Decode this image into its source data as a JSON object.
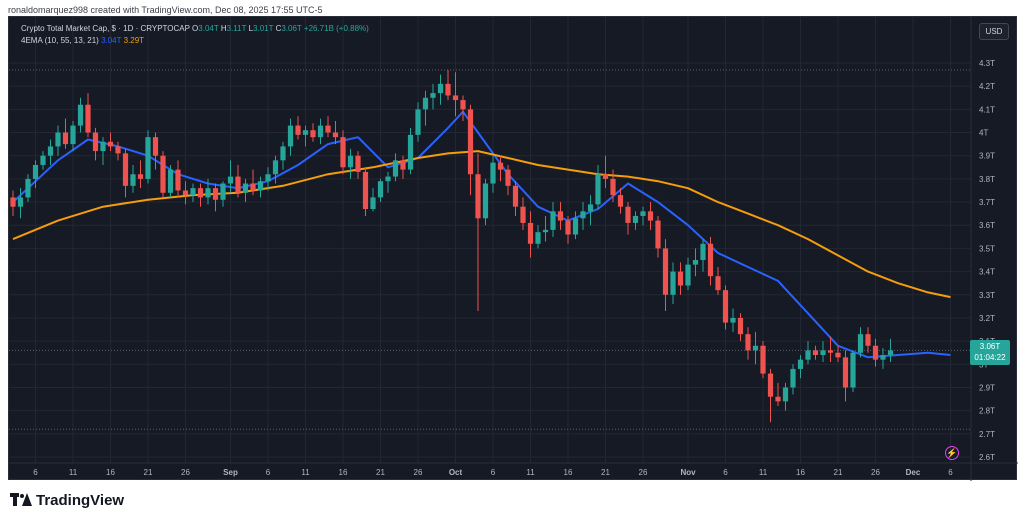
{
  "header": {
    "credit": "ronaldomarquez998 created with TradingView.com, Dec 08, 2025 17:55 UTC-5"
  },
  "legend": {
    "symbol": "Crypto Total Market Cap, $ · 1D · CRYPTOCAP",
    "o_label": "O",
    "o_value": "3.04T",
    "h_label": "H",
    "h_value": "3.11T",
    "l_label": "L",
    "l_value": "3.01T",
    "c_label": "C",
    "c_value": "3.06T",
    "change": "+26.71B (+0.88%)",
    "indicator": "4EMA (10, 55, 13, 21)",
    "ema_fast_value": "3.04T",
    "ema_slow_value": "3.29T"
  },
  "currency": "USD",
  "price_tag": {
    "price": "3.06T",
    "countdown": "01:04:22"
  },
  "footer": {
    "brand": "TradingView"
  },
  "colors": {
    "background": "#161a25",
    "up": "#26a69a",
    "down": "#ef5350",
    "ema_fast": "#2962ff",
    "ema_slow": "#f59d0b",
    "grid": "#232733",
    "axis_text": "#b2b5be"
  },
  "chart_data": {
    "type": "candlestick",
    "title": "Crypto Total Market Cap, $ · 1D · CRYPTOCAP",
    "ylim": [
      2.6,
      4.3
    ],
    "y_unit": "T",
    "y_ticks": [
      "4.3T",
      "4.2T",
      "4.1T",
      "4T",
      "3.9T",
      "3.8T",
      "3.7T",
      "3.6T",
      "3.5T",
      "3.4T",
      "3.3T",
      "3.2T",
      "3.1T",
      "3T",
      "2.9T",
      "2.8T",
      "2.7T",
      "2.6T"
    ],
    "y_tick_values": [
      4.3,
      4.2,
      4.1,
      4.0,
      3.9,
      3.8,
      3.7,
      3.6,
      3.5,
      3.4,
      3.3,
      3.2,
      3.1,
      3.0,
      2.9,
      2.8,
      2.7,
      2.6
    ],
    "x_tick_labels": [
      "6",
      "11",
      "16",
      "21",
      "26",
      "Sep",
      "6",
      "11",
      "16",
      "21",
      "26",
      "Oct",
      "6",
      "11",
      "16",
      "21",
      "26",
      "Nov",
      "6",
      "11",
      "16",
      "21",
      "26",
      "Dec",
      "6"
    ],
    "x_tick_index": [
      3,
      8,
      13,
      18,
      23,
      29,
      34,
      39,
      44,
      49,
      54,
      59,
      64,
      69,
      74,
      79,
      84,
      90,
      95,
      100,
      105,
      110,
      115,
      120,
      125
    ],
    "reference_levels": [
      4.27,
      3.06,
      2.72
    ],
    "candles": [
      [
        3.72,
        3.75,
        3.64,
        3.68
      ],
      [
        3.68,
        3.76,
        3.63,
        3.72
      ],
      [
        3.72,
        3.82,
        3.7,
        3.8
      ],
      [
        3.8,
        3.88,
        3.76,
        3.86
      ],
      [
        3.86,
        3.92,
        3.84,
        3.9
      ],
      [
        3.9,
        3.97,
        3.86,
        3.94
      ],
      [
        3.94,
        4.03,
        3.9,
        4.0
      ],
      [
        4.0,
        4.06,
        3.93,
        3.95
      ],
      [
        3.95,
        4.05,
        3.92,
        4.03
      ],
      [
        4.03,
        4.15,
        4.0,
        4.12
      ],
      [
        4.12,
        4.17,
        3.98,
        4.0
      ],
      [
        4.0,
        4.02,
        3.88,
        3.92
      ],
      [
        3.92,
        3.98,
        3.86,
        3.96
      ],
      [
        3.96,
        4.0,
        3.92,
        3.94
      ],
      [
        3.94,
        3.96,
        3.88,
        3.91
      ],
      [
        3.91,
        3.93,
        3.72,
        3.77
      ],
      [
        3.77,
        3.86,
        3.74,
        3.82
      ],
      [
        3.82,
        3.88,
        3.76,
        3.8
      ],
      [
        3.8,
        4.01,
        3.78,
        3.98
      ],
      [
        3.98,
        4.0,
        3.84,
        3.9
      ],
      [
        3.9,
        3.92,
        3.72,
        3.74
      ],
      [
        3.74,
        3.86,
        3.72,
        3.84
      ],
      [
        3.84,
        3.88,
        3.72,
        3.75
      ],
      [
        3.75,
        3.79,
        3.69,
        3.73
      ],
      [
        3.73,
        3.78,
        3.7,
        3.76
      ],
      [
        3.76,
        3.78,
        3.68,
        3.72
      ],
      [
        3.72,
        3.8,
        3.69,
        3.76
      ],
      [
        3.76,
        3.78,
        3.66,
        3.71
      ],
      [
        3.71,
        3.79,
        3.68,
        3.78
      ],
      [
        3.78,
        3.88,
        3.74,
        3.81
      ],
      [
        3.81,
        3.86,
        3.72,
        3.74
      ],
      [
        3.74,
        3.8,
        3.7,
        3.78
      ],
      [
        3.78,
        3.84,
        3.73,
        3.75
      ],
      [
        3.75,
        3.81,
        3.72,
        3.79
      ],
      [
        3.79,
        3.85,
        3.75,
        3.82
      ],
      [
        3.82,
        3.9,
        3.78,
        3.88
      ],
      [
        3.88,
        3.96,
        3.84,
        3.94
      ],
      [
        3.94,
        4.06,
        3.9,
        4.03
      ],
      [
        4.03,
        4.07,
        3.97,
        3.99
      ],
      [
        3.99,
        4.03,
        3.94,
        4.01
      ],
      [
        4.01,
        4.04,
        3.96,
        3.98
      ],
      [
        3.98,
        4.06,
        3.95,
        4.03
      ],
      [
        4.03,
        4.07,
        3.98,
        4.0
      ],
      [
        4.0,
        4.05,
        3.95,
        3.98
      ],
      [
        3.98,
        4.01,
        3.82,
        3.85
      ],
      [
        3.85,
        3.93,
        3.8,
        3.9
      ],
      [
        3.9,
        3.92,
        3.8,
        3.83
      ],
      [
        3.83,
        3.85,
        3.64,
        3.67
      ],
      [
        3.67,
        3.76,
        3.66,
        3.72
      ],
      [
        3.72,
        3.8,
        3.7,
        3.79
      ],
      [
        3.79,
        3.83,
        3.74,
        3.81
      ],
      [
        3.81,
        3.91,
        3.79,
        3.88
      ],
      [
        3.88,
        3.9,
        3.8,
        3.84
      ],
      [
        3.84,
        4.02,
        3.82,
        3.99
      ],
      [
        3.99,
        4.13,
        3.96,
        4.1
      ],
      [
        4.1,
        4.18,
        4.03,
        4.15
      ],
      [
        4.15,
        4.21,
        4.1,
        4.17
      ],
      [
        4.17,
        4.25,
        4.12,
        4.21
      ],
      [
        4.21,
        4.27,
        4.14,
        4.16
      ],
      [
        4.16,
        4.26,
        4.07,
        4.14
      ],
      [
        4.14,
        4.16,
        4.05,
        4.1
      ],
      [
        4.1,
        4.12,
        3.73,
        3.82
      ],
      [
        3.82,
        3.91,
        3.23,
        3.63
      ],
      [
        3.63,
        3.8,
        3.6,
        3.78
      ],
      [
        3.78,
        3.9,
        3.74,
        3.87
      ],
      [
        3.87,
        3.9,
        3.79,
        3.84
      ],
      [
        3.84,
        3.86,
        3.73,
        3.77
      ],
      [
        3.77,
        3.79,
        3.64,
        3.68
      ],
      [
        3.68,
        3.72,
        3.58,
        3.61
      ],
      [
        3.61,
        3.66,
        3.46,
        3.52
      ],
      [
        3.52,
        3.6,
        3.5,
        3.57
      ],
      [
        3.57,
        3.64,
        3.53,
        3.58
      ],
      [
        3.58,
        3.7,
        3.55,
        3.66
      ],
      [
        3.66,
        3.7,
        3.58,
        3.62
      ],
      [
        3.62,
        3.64,
        3.52,
        3.56
      ],
      [
        3.56,
        3.66,
        3.54,
        3.63
      ],
      [
        3.63,
        3.7,
        3.58,
        3.66
      ],
      [
        3.66,
        3.73,
        3.6,
        3.69
      ],
      [
        3.69,
        3.86,
        3.67,
        3.82
      ],
      [
        3.82,
        3.9,
        3.76,
        3.8
      ],
      [
        3.8,
        3.84,
        3.7,
        3.73
      ],
      [
        3.73,
        3.76,
        3.65,
        3.68
      ],
      [
        3.68,
        3.7,
        3.56,
        3.61
      ],
      [
        3.61,
        3.66,
        3.58,
        3.64
      ],
      [
        3.64,
        3.68,
        3.6,
        3.66
      ],
      [
        3.66,
        3.7,
        3.58,
        3.62
      ],
      [
        3.62,
        3.64,
        3.46,
        3.5
      ],
      [
        3.5,
        3.54,
        3.23,
        3.3
      ],
      [
        3.3,
        3.44,
        3.26,
        3.4
      ],
      [
        3.4,
        3.44,
        3.3,
        3.34
      ],
      [
        3.34,
        3.46,
        3.32,
        3.43
      ],
      [
        3.43,
        3.5,
        3.38,
        3.45
      ],
      [
        3.45,
        3.54,
        3.4,
        3.52
      ],
      [
        3.52,
        3.55,
        3.34,
        3.38
      ],
      [
        3.38,
        3.42,
        3.3,
        3.32
      ],
      [
        3.32,
        3.34,
        3.15,
        3.18
      ],
      [
        3.18,
        3.24,
        3.14,
        3.2
      ],
      [
        3.2,
        3.22,
        3.1,
        3.13
      ],
      [
        3.13,
        3.16,
        3.02,
        3.06
      ],
      [
        3.06,
        3.14,
        3.0,
        3.08
      ],
      [
        3.08,
        3.1,
        2.94,
        2.96
      ],
      [
        2.96,
        2.98,
        2.75,
        2.86
      ],
      [
        2.86,
        2.92,
        2.82,
        2.84
      ],
      [
        2.84,
        2.92,
        2.8,
        2.9
      ],
      [
        2.9,
        3.0,
        2.87,
        2.98
      ],
      [
        2.98,
        3.04,
        2.94,
        3.02
      ],
      [
        3.02,
        3.1,
        3.0,
        3.06
      ],
      [
        3.06,
        3.08,
        3.02,
        3.04
      ],
      [
        3.04,
        3.1,
        3.01,
        3.06
      ],
      [
        3.06,
        3.12,
        3.01,
        3.05
      ],
      [
        3.05,
        3.08,
        3.01,
        3.03
      ],
      [
        3.03,
        3.06,
        2.84,
        2.9
      ],
      [
        2.9,
        3.06,
        2.88,
        3.05
      ],
      [
        3.05,
        3.16,
        3.03,
        3.13
      ],
      [
        3.13,
        3.16,
        3.05,
        3.08
      ],
      [
        3.08,
        3.11,
        2.99,
        3.02
      ],
      [
        3.02,
        3.07,
        2.98,
        3.04
      ],
      [
        3.04,
        3.11,
        3.01,
        3.06
      ]
    ],
    "series": [
      {
        "name": "EMA fast",
        "value_label": "3.04T",
        "x": [
          0,
          6,
          10,
          14,
          18,
          22,
          26,
          30,
          34,
          38,
          42,
          46,
          50,
          54,
          58,
          60,
          62,
          66,
          70,
          74,
          78,
          82,
          86,
          90,
          94,
          98,
          102,
          106,
          110,
          114,
          118,
          122,
          125
        ],
        "values": [
          3.7,
          3.88,
          3.97,
          3.94,
          3.9,
          3.82,
          3.78,
          3.76,
          3.79,
          3.86,
          3.95,
          3.98,
          3.85,
          3.89,
          4.02,
          4.09,
          4.0,
          3.82,
          3.68,
          3.62,
          3.67,
          3.78,
          3.7,
          3.6,
          3.48,
          3.42,
          3.36,
          3.22,
          3.08,
          3.03,
          3.04,
          3.05,
          3.04
        ]
      },
      {
        "name": "EMA slow",
        "value_label": "3.29T",
        "x": [
          0,
          6,
          12,
          18,
          24,
          30,
          36,
          42,
          48,
          54,
          58,
          62,
          66,
          70,
          74,
          78,
          82,
          86,
          90,
          94,
          98,
          102,
          106,
          110,
          114,
          118,
          122,
          125
        ],
        "values": [
          3.54,
          3.62,
          3.68,
          3.71,
          3.73,
          3.74,
          3.77,
          3.82,
          3.85,
          3.89,
          3.91,
          3.92,
          3.89,
          3.86,
          3.84,
          3.82,
          3.81,
          3.79,
          3.76,
          3.7,
          3.65,
          3.6,
          3.54,
          3.47,
          3.4,
          3.35,
          3.31,
          3.29
        ]
      }
    ]
  }
}
